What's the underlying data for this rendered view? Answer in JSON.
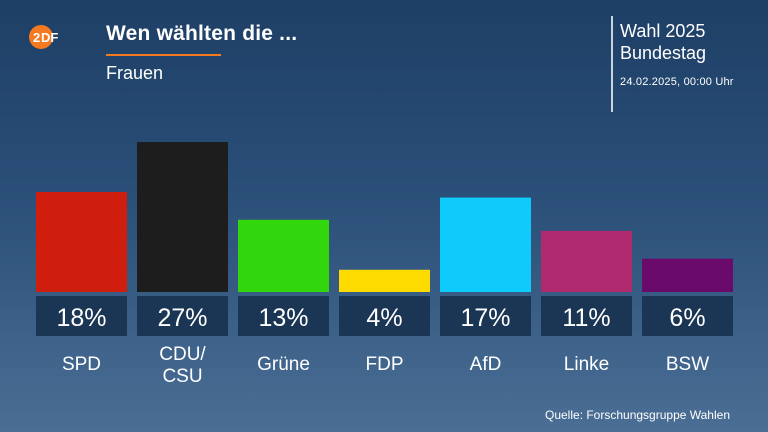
{
  "brand": {
    "logo_text": "ZDF",
    "accent": "#f57a1f"
  },
  "header": {
    "title": "Wen wählten die ...",
    "subtitle": "Frauen"
  },
  "meta": {
    "line1": "Wahl 2025",
    "line2": "Bundestag",
    "date": "24.02.2025, 00:00 Uhr"
  },
  "source": "Quelle: Forschungsgruppe Wahlen",
  "chart_data": {
    "type": "bar",
    "title": "Wen wählten die ...",
    "subtitle": "Frauen",
    "categories": [
      "SPD",
      "CDU/\nCSU",
      "Grüne",
      "FDP",
      "AfD",
      "Linke",
      "BSW"
    ],
    "values": [
      18,
      27,
      13,
      4,
      17,
      11,
      6
    ],
    "value_labels": [
      "18%",
      "27%",
      "13%",
      "4%",
      "17%",
      "11%",
      "6%"
    ],
    "colors": [
      "#d01e0e",
      "#1d1d1d",
      "#32d60c",
      "#fddb00",
      "#0fcbfb",
      "#b02a70",
      "#6a0a6b"
    ],
    "unit": "%",
    "ylim": [
      0,
      27
    ],
    "grid": false,
    "legend": "none"
  }
}
